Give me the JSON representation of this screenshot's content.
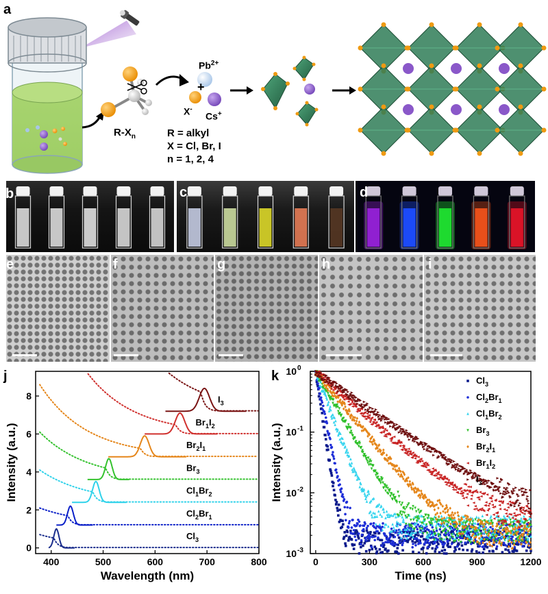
{
  "panel_labels": {
    "a": "a",
    "b": "b",
    "c": "c",
    "d": "d",
    "e": "e",
    "f": "f",
    "g": "g",
    "h": "h",
    "i": "i",
    "j": "j",
    "k": "k"
  },
  "scheme": {
    "pb": "Pb",
    "pb_sup": "2+",
    "cs": "Cs",
    "cs_sup": "+",
    "x": "X",
    "x_sup": "-",
    "plus": "+",
    "rx": "R-X",
    "rx_sub": "n",
    "r_def": "R = alkyl",
    "x_def": "X = Cl, Br, I",
    "n_def": "n = 1, 2, 4"
  },
  "colors": {
    "liquid": "#a5d36a",
    "octahedron": "#2f7d57",
    "cs_atom": "#8a58c9",
    "x_atom": "#ef9a12"
  },
  "chart_data": [
    {
      "type": "line",
      "panel": "j",
      "xlabel": "Wavelength (nm)",
      "ylabel": "Intensity (a.u.)",
      "xlim": [
        370,
        800
      ],
      "ylim": [
        -0.3,
        9.3
      ],
      "xticks": [
        400,
        500,
        600,
        700,
        800
      ],
      "yticks": [
        0,
        2,
        4,
        6,
        8
      ],
      "series": [
        {
          "name": "Cl3",
          "name_main": "Cl",
          "name_sub": "3",
          "color": "#1a2d8c",
          "offset": 0,
          "pl_center": 410,
          "pl_width": 7,
          "pl_height": 1.0,
          "pl_range": [
            395,
            445
          ],
          "abs_edge": 405,
          "abs_top": 0.7,
          "abs_range": [
            378,
            800
          ]
        },
        {
          "name": "Cl2Br1",
          "name_main": "Cl",
          "name_sub": "2",
          "name_main2": "Br",
          "name_sub2": "1",
          "color": "#0a1fc8",
          "offset": 1.2,
          "pl_center": 437,
          "pl_width": 8,
          "pl_height": 1.0,
          "pl_range": [
            410,
            480
          ],
          "abs_edge": 432,
          "abs_top": 0.9,
          "abs_range": [
            378,
            800
          ]
        },
        {
          "name": "Cl1Br2",
          "name_main": "Cl",
          "name_sub": "1",
          "name_main2": "Br",
          "name_sub2": "2",
          "color": "#2fd2ea",
          "offset": 2.4,
          "pl_center": 486,
          "pl_width": 9,
          "pl_height": 1.1,
          "pl_range": [
            440,
            545
          ],
          "abs_edge": 480,
          "abs_top": 1.7,
          "abs_range": [
            378,
            800
          ]
        },
        {
          "name": "Br3",
          "name_main": "Br",
          "name_sub": "3",
          "color": "#34c22e",
          "offset": 3.6,
          "pl_center": 511,
          "pl_width": 9,
          "pl_height": 1.1,
          "pl_range": [
            470,
            550
          ],
          "abs_edge": 505,
          "abs_top": 2.5,
          "abs_range": [
            378,
            800
          ]
        },
        {
          "name": "Br2I1",
          "name_main": "Br",
          "name_sub": "2",
          "name_main2": "I",
          "name_sub2": "1",
          "color": "#e5861a",
          "offset": 4.8,
          "pl_center": 580,
          "pl_width": 12,
          "pl_height": 1.1,
          "pl_range": [
            510,
            660
          ],
          "abs_edge": 572,
          "abs_top": 3.8,
          "abs_range": [
            378,
            800
          ]
        },
        {
          "name": "Br1I2",
          "name_main": "Br",
          "name_sub": "1",
          "name_main2": "I",
          "name_sub2": "2",
          "color": "#d0302e",
          "offset": 6.0,
          "pl_center": 648,
          "pl_width": 13,
          "pl_height": 1.1,
          "pl_range": [
            580,
            720
          ],
          "abs_edge": 640,
          "abs_top": 4.0,
          "abs_range": [
            450,
            800
          ]
        },
        {
          "name": "I3",
          "name_main": "I",
          "name_sub": "3",
          "color": "#7a1414",
          "offset": 7.2,
          "pl_center": 695,
          "pl_width": 14,
          "pl_height": 1.2,
          "pl_range": [
            620,
            775
          ],
          "abs_edge": 688,
          "abs_top": 2.7,
          "abs_range": [
            600,
            800
          ]
        }
      ]
    },
    {
      "type": "scatter",
      "panel": "k",
      "xlabel": "Time (ns)",
      "ylabel": "Intensity (a.u.)",
      "xlim": [
        -30,
        1200
      ],
      "ylim_log": [
        -3,
        0
      ],
      "xticks": [
        0,
        300,
        600,
        900,
        1200
      ],
      "ytick_labels": [
        {
          "base": "10",
          "exp": "0"
        },
        {
          "base": "10",
          "exp": "-1"
        },
        {
          "base": "10",
          "exp": "-2"
        },
        {
          "base": "10",
          "exp": "-3"
        }
      ],
      "legend_position": "top-right",
      "series": [
        {
          "name": "Cl3",
          "name_main": "Cl",
          "name_sub": "3",
          "color": "#0a1a8c",
          "marker": "square",
          "tau": 22,
          "floor": 0.0016,
          "tail_end": 1200
        },
        {
          "name": "Cl2Br1",
          "name_main": "Cl",
          "name_sub": "2",
          "name_main2": "Br",
          "name_sub2": "1",
          "color": "#1f2fd8",
          "marker": "circle",
          "tau": 30,
          "floor": 0.0021,
          "tail_end": 1200
        },
        {
          "name": "Cl1Br2",
          "name_main": "Cl",
          "name_sub": "1",
          "name_main2": "Br",
          "name_sub2": "2",
          "color": "#35d4ee",
          "marker": "triangle-up",
          "tau": 55,
          "floor": 0.0028,
          "tail_end": 1200
        },
        {
          "name": "Br3",
          "name_main": "Br",
          "name_sub": "3",
          "color": "#2fc02a",
          "marker": "triangle-down",
          "tau": 85,
          "floor": 0.0024,
          "tail_end": 1200
        },
        {
          "name": "Br2I1",
          "name_main": "Br",
          "name_sub": "2",
          "name_main2": "I",
          "name_sub2": "1",
          "color": "#e5861a",
          "marker": "diamond",
          "tau": 120,
          "floor": 0.0019,
          "tail_end": 1200
        },
        {
          "name": "Br1I2",
          "name_main": "Br",
          "name_sub": "1",
          "name_main2": "I",
          "name_sub2": "2",
          "color": "#c82424",
          "marker": "triangle-left",
          "tau": 165,
          "floor": 0.0034,
          "tail_end": 1200
        },
        {
          "name": "I3",
          "name_main": "I",
          "name_sub": "3",
          "color": "#6e0f0f",
          "marker": "triangle-right",
          "tau": 210,
          "floor": 0.0041,
          "tail_end": 1200
        }
      ]
    }
  ],
  "vial_colors": {
    "b": [
      "#e8e8e8",
      "#e8e8e8",
      "#ececec",
      "#e4e4e4",
      "#e2e2e2"
    ],
    "c": [
      "#cfd6ee",
      "#d7e7a8",
      "#e9e42a",
      "#f3835a",
      "#5b3a24"
    ],
    "d": [
      "#9522d8",
      "#1e4dff",
      "#20e230",
      "#f0521a",
      "#e21428"
    ]
  }
}
